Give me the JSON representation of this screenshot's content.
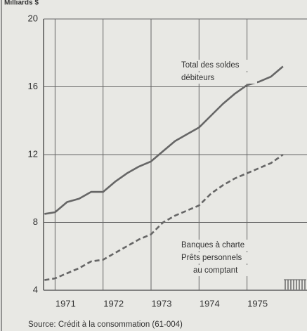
{
  "chart_data": {
    "type": "line",
    "y_axis_label": "Milliards $",
    "source": "Source: Crédit à la consommation (61-004)",
    "x": [
      1970.78,
      1971,
      1971.25,
      1971.5,
      1971.75,
      1972,
      1972.25,
      1972.5,
      1972.75,
      1973,
      1973.25,
      1973.5,
      1973.75,
      1974,
      1974.25,
      1974.5,
      1974.75,
      1975,
      1975.25,
      1975.5,
      1975.75
    ],
    "series": [
      {
        "name": "Total des soldes débiteurs",
        "color": "#666666",
        "dash": false,
        "values": [
          8.5,
          8.6,
          9.2,
          9.4,
          9.8,
          9.8,
          10.4,
          10.9,
          11.3,
          11.6,
          12.2,
          12.8,
          13.2,
          13.6,
          14.3,
          15.0,
          15.6,
          16.1,
          16.3,
          16.6,
          17.2
        ]
      },
      {
        "name": "Banques à charte Prêts personnels au comptant",
        "color": "#666666",
        "dash": true,
        "values": [
          4.6,
          4.7,
          5.0,
          5.3,
          5.7,
          5.8,
          6.2,
          6.6,
          7.0,
          7.3,
          8.0,
          8.4,
          8.7,
          9.0,
          9.7,
          10.2,
          10.6,
          10.9,
          11.2,
          11.5,
          12.0
        ]
      }
    ],
    "annotations": [
      {
        "lines": [
          "Total des soldes",
          "débiteurs"
        ]
      },
      {
        "lines": [
          "Banques à charte",
          "Prêts personnels",
          "au comptant"
        ]
      }
    ],
    "xlim": [
      1970.76,
      1976.25
    ],
    "xticks": [
      1971,
      1972,
      1973,
      1974,
      1975
    ],
    "ylim": [
      4,
      20
    ],
    "yticks": [
      4,
      8,
      12,
      16,
      20
    ],
    "grid": true
  }
}
